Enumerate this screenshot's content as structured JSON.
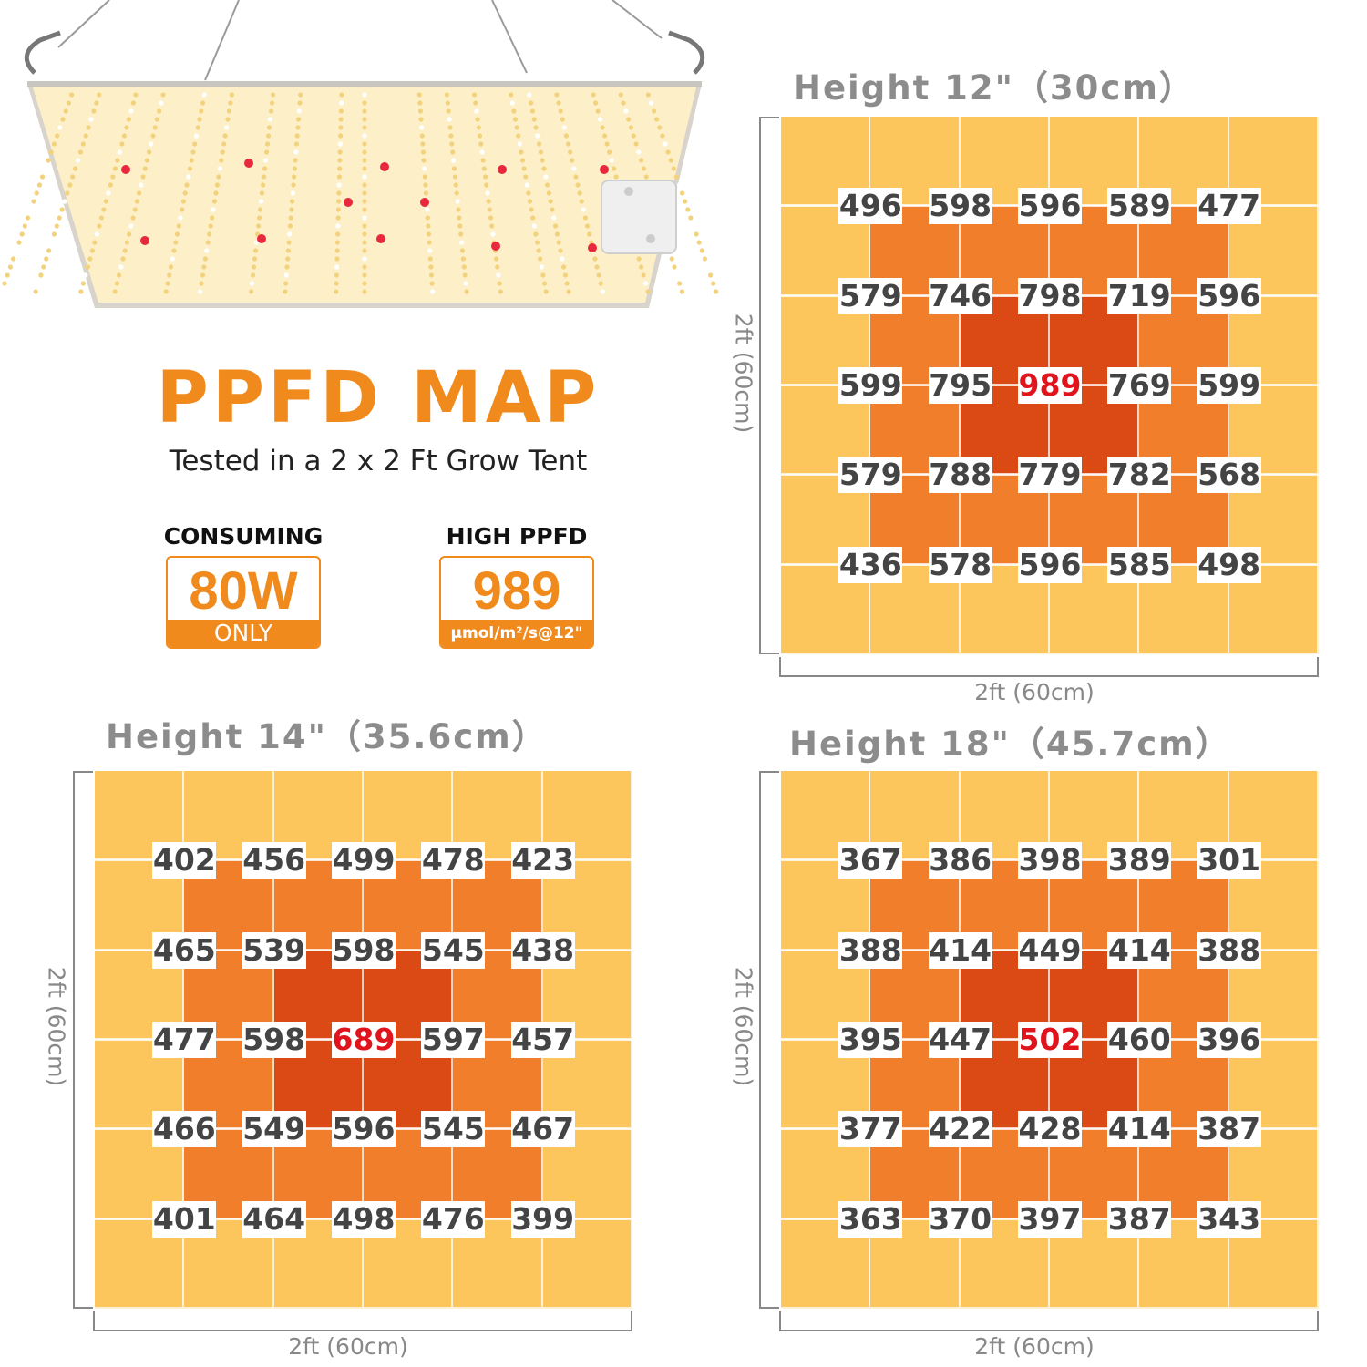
{
  "header": {
    "title": "PPFD MAP",
    "subtitle": "Tested in a 2 x 2 Ft Grow Tent"
  },
  "badges": {
    "consuming": {
      "label": "CONSUMING",
      "value": "80W",
      "footer": "ONLY"
    },
    "high_ppfd": {
      "label": "HIGH PPFD",
      "value": "989",
      "footer": "μmol/m²/s@12\""
    }
  },
  "colors": {
    "accent": "#f18a1c",
    "zone_outer": "#fcc65d",
    "zone_mid": "#f17e2a",
    "zone_center": "#db4a14",
    "peak_text": "#e0141c",
    "label_gray": "#8c8c8c"
  },
  "chart_data": [
    {
      "type": "heatmap",
      "title": "Height 12\"（30cm）",
      "xlabel": "2ft (60cm)",
      "ylabel": "2ft (60cm)",
      "values": [
        [
          496,
          598,
          596,
          589,
          477
        ],
        [
          579,
          746,
          798,
          719,
          596
        ],
        [
          599,
          795,
          989,
          769,
          599
        ],
        [
          579,
          788,
          779,
          782,
          568
        ],
        [
          436,
          578,
          596,
          585,
          498
        ]
      ],
      "peak": 989
    },
    {
      "type": "heatmap",
      "title": "Height 14\"（35.6cm）",
      "xlabel": "2ft (60cm)",
      "ylabel": "2ft (60cm)",
      "values": [
        [
          402,
          456,
          499,
          478,
          423
        ],
        [
          465,
          539,
          598,
          545,
          438
        ],
        [
          477,
          598,
          689,
          597,
          457
        ],
        [
          466,
          549,
          596,
          545,
          467
        ],
        [
          401,
          464,
          498,
          476,
          399
        ]
      ],
      "peak": 689
    },
    {
      "type": "heatmap",
      "title": "Height 18\"（45.7cm）",
      "xlabel": "2ft (60cm)",
      "ylabel": "2ft (60cm)",
      "values": [
        [
          367,
          386,
          398,
          389,
          301
        ],
        [
          388,
          414,
          449,
          414,
          388
        ],
        [
          395,
          447,
          502,
          460,
          396
        ],
        [
          377,
          422,
          428,
          414,
          387
        ],
        [
          363,
          370,
          397,
          387,
          343
        ]
      ],
      "peak": 502
    }
  ]
}
